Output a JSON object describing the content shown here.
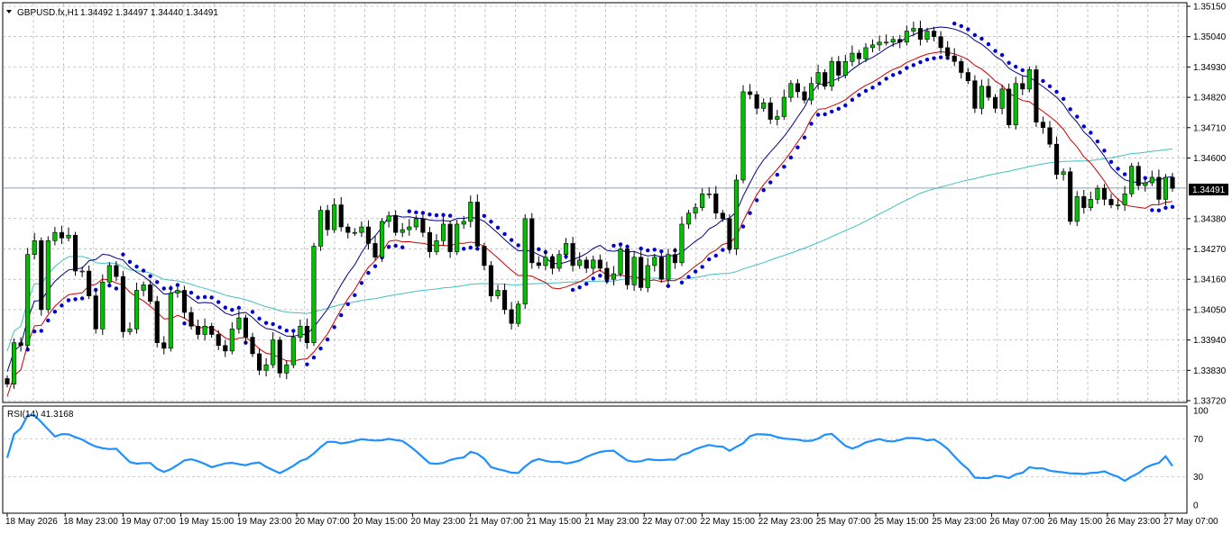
{
  "header": {
    "symbol": "GBPUSD.fx,H1",
    "ohlc": "1.34492 1.34497 1.34440 1.34491",
    "collapse_icon": "triangle-down-icon"
  },
  "rsi_panel": {
    "label": "RSI(14) 41.3168",
    "levels": [
      "100",
      "70",
      "30",
      "0"
    ]
  },
  "colors": {
    "bull_fill": "#00c000",
    "bear_fill": "#000000",
    "upper_band": "#00008b",
    "lower_band": "#cc0000",
    "slow_ma": "#40c0c0",
    "sar": "#0000d0",
    "rsi": "#1e90ff",
    "grid": "#a0a0a0",
    "current_price_line": "#708090"
  },
  "chart_data": [
    {
      "type": "candlestick",
      "title": "GBPUSD.fx,H1",
      "ylim": [
        1.3372,
        1.3515
      ],
      "y_ticks": [
        "1.35150",
        "1.35040",
        "1.34930",
        "1.34820",
        "1.34710",
        "1.34600",
        "1.34380",
        "1.34270",
        "1.34160",
        "1.34050",
        "1.33940",
        "1.33830",
        "1.33720"
      ],
      "x_ticks": [
        "18 May 2026",
        "18 May 23:00",
        "19 May 07:00",
        "19 May 15:00",
        "19 May 23:00",
        "20 May 07:00",
        "20 May 15:00",
        "20 May 23:00",
        "21 May 07:00",
        "21 May 15:00",
        "21 May 23:00",
        "22 May 07:00",
        "22 May 15:00",
        "22 May 23:00",
        "25 May 07:00",
        "25 May 15:00",
        "25 May 23:00",
        "26 May 07:00",
        "26 May 15:00",
        "26 May 23:00",
        "27 May 07:00"
      ],
      "current_price": "1.34491",
      "grid": true,
      "series": [
        {
          "kind": "close",
          "values": [
            1.3378,
            1.3393,
            1.3392,
            1.3425,
            1.343,
            1.3405,
            1.343,
            1.3433,
            1.3431,
            1.3432,
            1.3419,
            1.3419,
            1.341,
            1.3398,
            1.3415,
            1.3421,
            1.3417,
            1.3397,
            1.3398,
            1.3412,
            1.3414,
            1.3408,
            1.3393,
            1.3391,
            1.3411,
            1.3412,
            1.3404,
            1.3399,
            1.3396,
            1.3399,
            1.3396,
            1.3392,
            1.339,
            1.3398,
            1.3402,
            1.3395,
            1.3389,
            1.3383,
            1.3385,
            1.3394,
            1.3382,
            1.3385,
            1.3395,
            1.3399,
            1.3393,
            1.3428,
            1.3441,
            1.3434,
            1.3443,
            1.3435,
            1.3433,
            1.3433,
            1.3435,
            1.3429,
            1.3424,
            1.3437,
            1.3439,
            1.3433,
            1.3434,
            1.3435,
            1.3438,
            1.3433,
            1.3426,
            1.343,
            1.3436,
            1.3426,
            1.3436,
            1.3437,
            1.3444,
            1.3428,
            1.3421,
            1.341,
            1.3412,
            1.3405,
            1.34,
            1.3407,
            1.3438,
            1.3422,
            1.3421,
            1.3424,
            1.342,
            1.3425,
            1.3429,
            1.3421,
            1.3423,
            1.342,
            1.3423,
            1.342,
            1.3416,
            1.3418,
            1.3427,
            1.3414,
            1.3424,
            1.3413,
            1.3421,
            1.3424,
            1.3416,
            1.3425,
            1.3422,
            1.3436,
            1.344,
            1.3442,
            1.3447,
            1.3447,
            1.344,
            1.3438,
            1.3427,
            1.3452,
            1.3484,
            1.3483,
            1.3478,
            1.348,
            1.3474,
            1.3475,
            1.3482,
            1.3487,
            1.3484,
            1.3481,
            1.3487,
            1.3491,
            1.3486,
            1.3495,
            1.349,
            1.3495,
            1.3498,
            1.3496,
            1.35,
            1.3501,
            1.3502,
            1.3502,
            1.3503,
            1.3502,
            1.3506,
            1.3507,
            1.3503,
            1.3506,
            1.3504,
            1.35,
            1.3497,
            1.3495,
            1.3491,
            1.3488,
            1.3478,
            1.3486,
            1.3482,
            1.3478,
            1.3485,
            1.3472,
            1.3487,
            1.3485,
            1.3492,
            1.3473,
            1.3471,
            1.3465,
            1.3454,
            1.3455,
            1.3437,
            1.3446,
            1.3442,
            1.3445,
            1.3449,
            1.3445,
            1.3443,
            1.3443,
            1.3447,
            1.3457,
            1.345,
            1.3451,
            1.3453,
            1.3445,
            1.3453,
            1.3449
          ]
        },
        {
          "name": "RSI(14)",
          "last": 41.3168
        }
      ]
    }
  ]
}
